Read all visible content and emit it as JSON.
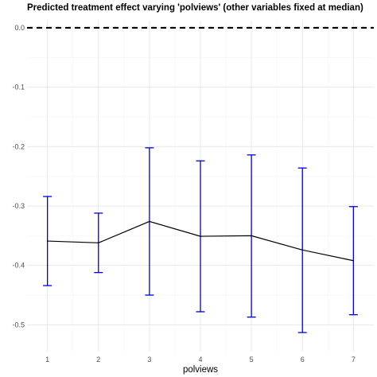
{
  "chart_data": {
    "type": "line",
    "title": "Predicted treatment effect varying 'polviews' (other variables fixed at median)",
    "xlabel": "polviews",
    "ylabel": "",
    "x": [
      1,
      2,
      3,
      4,
      5,
      6,
      7
    ],
    "x_tick_labels": [
      "1",
      "2",
      "3",
      "4",
      "5",
      "6",
      "7"
    ],
    "y_ticks": [
      0.0,
      -0.1,
      -0.2,
      -0.3,
      -0.4,
      -0.5
    ],
    "y_tick_labels": [
      "0.0",
      "-0.1",
      "-0.2",
      "-0.3",
      "-0.4",
      "-0.5"
    ],
    "ylim": [
      -0.545,
      0.012
    ],
    "xlim": [
      0.6,
      7.4
    ],
    "grid": true,
    "series": [
      {
        "values": [
          -0.359,
          -0.362,
          -0.326,
          -0.351,
          -0.35,
          -0.374,
          -0.392
        ],
        "lower": [
          -0.434,
          -0.412,
          -0.45,
          -0.478,
          -0.487,
          -0.513,
          -0.483
        ],
        "upper": [
          -0.284,
          -0.312,
          -0.202,
          -0.224,
          -0.214,
          -0.236,
          -0.301
        ],
        "line_color": "#000000",
        "errorbar_color": "#0000dd"
      }
    ],
    "reference_line": {
      "y": 0.0,
      "style": "dashed",
      "color": "#000000"
    }
  }
}
